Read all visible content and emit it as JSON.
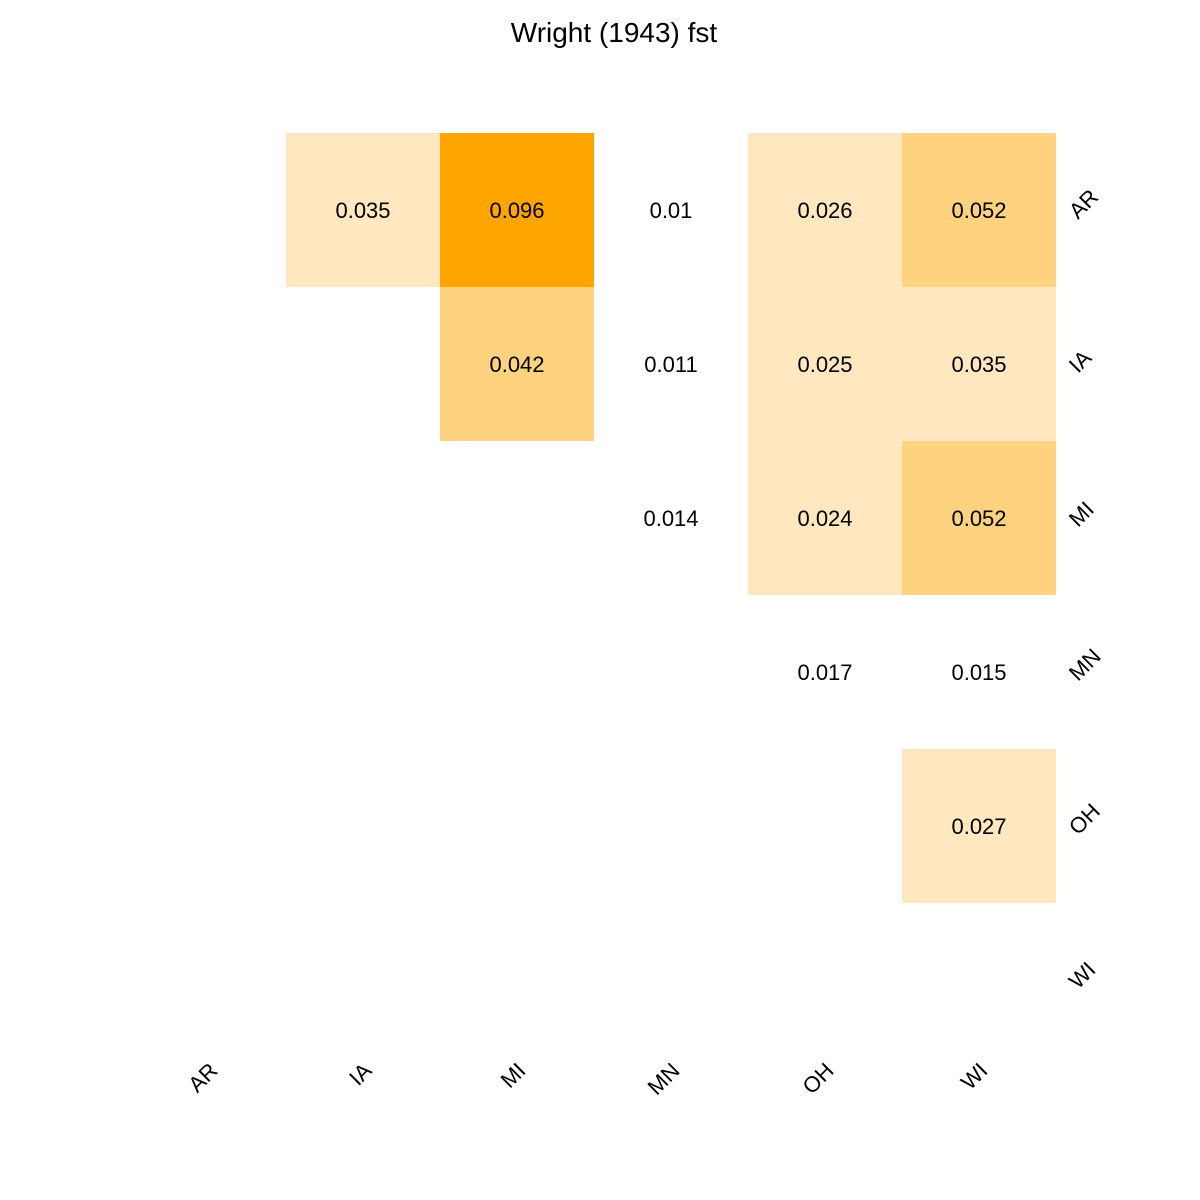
{
  "chart_data": {
    "type": "heatmap",
    "title": "Wright (1943) fst",
    "row_labels": [
      "AR",
      "IA",
      "MI",
      "MN",
      "OH",
      "WI"
    ],
    "col_labels": [
      "AR",
      "IA",
      "MI",
      "MN",
      "OH",
      "WI"
    ],
    "cells": [
      {
        "row": "AR",
        "col": "IA",
        "value": 0.035,
        "label": "0.035"
      },
      {
        "row": "AR",
        "col": "MI",
        "value": 0.096,
        "label": "0.096"
      },
      {
        "row": "AR",
        "col": "MN",
        "value": 0.01,
        "label": "0.01"
      },
      {
        "row": "AR",
        "col": "OH",
        "value": 0.026,
        "label": "0.026"
      },
      {
        "row": "AR",
        "col": "WI",
        "value": 0.052,
        "label": "0.052"
      },
      {
        "row": "IA",
        "col": "MI",
        "value": 0.042,
        "label": "0.042"
      },
      {
        "row": "IA",
        "col": "MN",
        "value": 0.011,
        "label": "0.011"
      },
      {
        "row": "IA",
        "col": "OH",
        "value": 0.025,
        "label": "0.025"
      },
      {
        "row": "IA",
        "col": "WI",
        "value": 0.035,
        "label": "0.035"
      },
      {
        "row": "MI",
        "col": "MN",
        "value": 0.014,
        "label": "0.014"
      },
      {
        "row": "MI",
        "col": "OH",
        "value": 0.024,
        "label": "0.024"
      },
      {
        "row": "MI",
        "col": "WI",
        "value": 0.052,
        "label": "0.052"
      },
      {
        "row": "MN",
        "col": "OH",
        "value": 0.017,
        "label": "0.017"
      },
      {
        "row": "MN",
        "col": "WI",
        "value": 0.015,
        "label": "0.015"
      },
      {
        "row": "OH",
        "col": "WI",
        "value": 0.027,
        "label": "0.027"
      }
    ],
    "color_scale": {
      "low": "#FFFFFF",
      "light": "#FFE7BF",
      "mid": "#FFD280",
      "high": "#FFA500"
    },
    "grid": false,
    "legend": "none"
  }
}
